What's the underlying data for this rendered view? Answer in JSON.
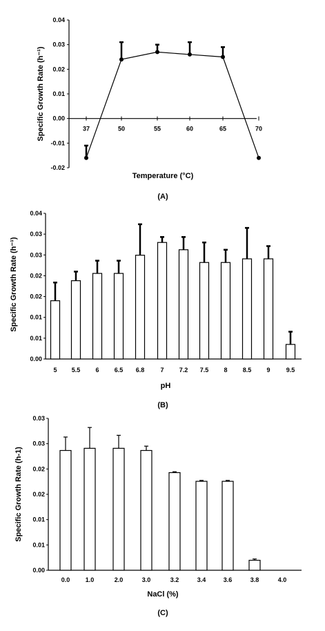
{
  "chart_data": [
    {
      "type": "line",
      "panel_label": "(A)",
      "xlabel": "Temperature (°C)",
      "ylabel": "Specific Growth Rate (h⁻¹)",
      "ylim": [
        -0.02,
        0.04
      ],
      "yticks": [
        "0.04",
        "0.03",
        "0.02",
        "0.01",
        "0.00",
        "-0.01",
        "-0.02"
      ],
      "categories": [
        "37",
        "50",
        "55",
        "60",
        "65",
        "70"
      ],
      "values": [
        -0.016,
        0.024,
        0.027,
        0.026,
        0.025,
        -0.016
      ],
      "errors": [
        0.005,
        0.007,
        0.003,
        0.005,
        0.004,
        0.0
      ],
      "grid": false,
      "color": "#000000"
    },
    {
      "type": "bar",
      "panel_label": "(B)",
      "xlabel": "pH",
      "ylabel": "Specific Growth Rate (h⁻¹)",
      "ylim": [
        0,
        0.04
      ],
      "yticks": [
        "0.04",
        "0.03",
        "0.03",
        "0.02",
        "0.02",
        "0.01",
        "0.01",
        "0.00"
      ],
      "categories": [
        "5",
        "5.5",
        "6",
        "6.5",
        "6.8",
        "7",
        "7.2",
        "7.5",
        "8",
        "8.5",
        "9",
        "9.5"
      ],
      "values": [
        0.016,
        0.0215,
        0.0235,
        0.0235,
        0.0285,
        0.032,
        0.03,
        0.0265,
        0.0265,
        0.0275,
        0.0275,
        0.004
      ],
      "errors": [
        0.005,
        0.0025,
        0.0035,
        0.0035,
        0.0085,
        0.0015,
        0.0035,
        0.0055,
        0.0035,
        0.0085,
        0.0035,
        0.0035
      ],
      "grid": false,
      "color": "#000000"
    },
    {
      "type": "bar",
      "panel_label": "(C)",
      "xlabel": "NaCl (%)",
      "ylabel": "Specific Growth Rate (h-1)",
      "ylim": [
        0,
        0.035
      ],
      "yticks": [
        "0.03",
        "0.03",
        "0.02",
        "0.02",
        "0.01",
        "0.01",
        "0.00"
      ],
      "categories": [
        "0.0",
        "1.0",
        "2.0",
        "3.0",
        "3.2",
        "3.4",
        "3.6",
        "3.8",
        "4.0"
      ],
      "values": [
        0.0276,
        0.0281,
        0.0281,
        0.0276,
        0.0225,
        0.0205,
        0.0205,
        0.0023,
        0.0
      ],
      "errors": [
        0.0031,
        0.0048,
        0.003,
        0.001,
        0.0002,
        0.0002,
        0.0002,
        0.0003,
        0.0
      ],
      "grid": false,
      "color": "#000000"
    }
  ]
}
